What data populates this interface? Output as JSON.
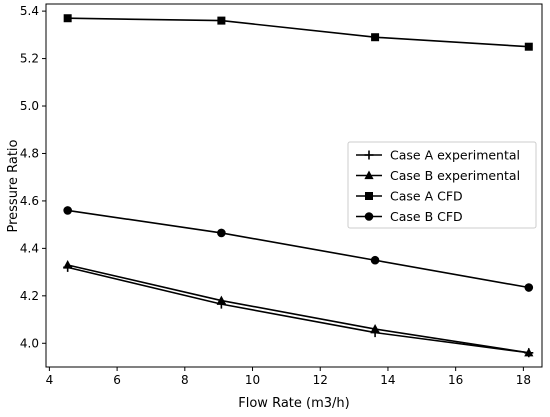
{
  "chart_data": {
    "type": "line",
    "title": "",
    "xlabel": "Flow Rate (m3/h)",
    "ylabel": "Pressure Ratio",
    "xlim": [
      3.9,
      18.55
    ],
    "ylim": [
      3.9,
      5.43
    ],
    "xticks": [
      4,
      6,
      8,
      10,
      12,
      14,
      16,
      18
    ],
    "yticks": [
      4.0,
      4.2,
      4.4,
      4.6,
      4.8,
      5.0,
      5.2,
      5.4
    ],
    "ytick_labels": [
      "4.0",
      "4.2",
      "4.4",
      "4.6",
      "4.8",
      "5.0",
      "5.2",
      "5.4"
    ],
    "grid": false,
    "legend_position": "center-right",
    "color": "#000000",
    "series": [
      {
        "name": "Case A experimental",
        "marker": "plus",
        "x": [
          4.54,
          9.08,
          13.62,
          18.16
        ],
        "y": [
          4.32,
          4.165,
          4.045,
          3.96
        ]
      },
      {
        "name": "Case B experimental",
        "marker": "triangle",
        "x": [
          4.54,
          9.08,
          13.62,
          18.16
        ],
        "y": [
          4.33,
          4.18,
          4.06,
          3.96
        ]
      },
      {
        "name": "Case A CFD",
        "marker": "square",
        "x": [
          4.54,
          9.08,
          13.62,
          18.16
        ],
        "y": [
          5.37,
          5.36,
          5.29,
          5.25
        ]
      },
      {
        "name": "Case B CFD",
        "marker": "circle",
        "x": [
          4.54,
          9.08,
          13.62,
          18.16
        ],
        "y": [
          4.56,
          4.465,
          4.35,
          4.235
        ]
      }
    ]
  }
}
